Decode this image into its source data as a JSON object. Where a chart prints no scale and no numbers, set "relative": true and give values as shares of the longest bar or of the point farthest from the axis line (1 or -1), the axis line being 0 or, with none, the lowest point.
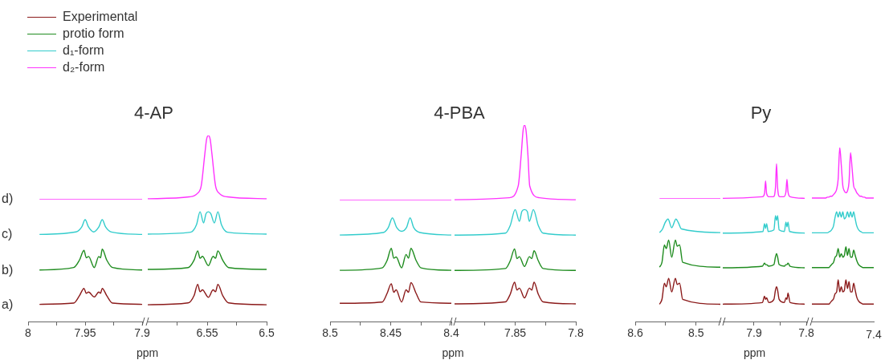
{
  "chart_data": [
    {
      "type": "line",
      "xlabel": "ppm",
      "relative": true,
      "marker": "none",
      "legend": "top left",
      "xlim": [
        8.0,
        7.9
      ],
      "xticks": [
        8.0,
        {
          "value": 7.975,
          "label": null
        },
        7.95,
        {
          "value": 7.925,
          "label": null
        },
        7.9
      ],
      "annotations": [
        "a)",
        "b)",
        "c)",
        "d)"
      ],
      "series": [
        {
          "name": "Experimental",
          "color": "#8b1a1a",
          "x": [
            7.99,
            7.96,
            7.955,
            7.951,
            7.949,
            7.947,
            7.942,
            7.938,
            7.9365,
            7.935,
            7.931,
            7.926,
            7.9
          ],
          "values": [
            0.14,
            0.15,
            0.21,
            0.27,
            0.23,
            0.24,
            0.2,
            0.24,
            0.23,
            0.27,
            0.21,
            0.15,
            0.14
          ]
        },
        {
          "name": "protio form",
          "color": "#1f8c1f",
          "x": [
            7.99,
            7.96,
            7.955,
            7.951,
            7.949,
            7.947,
            7.942,
            7.938,
            7.9365,
            7.935,
            7.931,
            7.926,
            7.9
          ],
          "values": [
            0.42,
            0.44,
            0.5,
            0.58,
            0.52,
            0.53,
            0.44,
            0.53,
            0.52,
            0.59,
            0.5,
            0.44,
            0.42
          ]
        },
        {
          "name": "d₁-form",
          "color": "#33cccc",
          "x": [
            7.99,
            7.958,
            7.953,
            7.95,
            7.947,
            7.9425,
            7.938,
            7.935,
            7.932,
            7.927,
            7.9
          ],
          "values": [
            0.71,
            0.73,
            0.77,
            0.83,
            0.77,
            0.73,
            0.77,
            0.83,
            0.77,
            0.73,
            0.71
          ]
        },
        {
          "name": "d₂-form",
          "color": "#ff33ff",
          "x": [
            7.99,
            7.9
          ],
          "values": [
            1.0,
            1.0
          ]
        }
      ]
    },
    {
      "type": "line",
      "title": "4-AP",
      "relative": true,
      "marker": "none",
      "xlim": [
        6.6,
        6.5
      ],
      "xticks": [
        {
          "value": 6.575,
          "label": null
        },
        6.55,
        {
          "value": 6.525,
          "label": null
        },
        6.5
      ],
      "series": [
        {
          "color": "#8b1a1a",
          "x": [
            6.6,
            6.566,
            6.561,
            6.558,
            6.556,
            6.554,
            6.549,
            6.545,
            6.543,
            6.541,
            6.537,
            6.532,
            6.5
          ],
          "values": [
            0.09,
            0.1,
            0.14,
            0.2,
            0.16,
            0.17,
            0.13,
            0.17,
            0.16,
            0.2,
            0.14,
            0.1,
            0.09
          ]
        },
        {
          "color": "#1f8c1f",
          "x": [
            6.6,
            6.566,
            6.561,
            6.558,
            6.556,
            6.554,
            6.549,
            6.545,
            6.543,
            6.541,
            6.537,
            6.532,
            6.5
          ],
          "values": [
            0.28,
            0.29,
            0.33,
            0.38,
            0.34,
            0.35,
            0.3,
            0.35,
            0.34,
            0.38,
            0.33,
            0.29,
            0.28
          ]
        },
        {
          "color": "#33cccc",
          "x": [
            6.6,
            6.564,
            6.559,
            6.556,
            6.553,
            6.551,
            6.549,
            6.547,
            6.544,
            6.541,
            6.538,
            6.533,
            6.5
          ],
          "values": [
            0.47,
            0.48,
            0.52,
            0.59,
            0.53,
            0.58,
            0.59,
            0.58,
            0.53,
            0.59,
            0.52,
            0.48,
            0.47
          ]
        },
        {
          "color": "#ff33ff",
          "x": [
            6.6,
            6.565,
            6.558,
            6.555,
            6.552,
            6.5505,
            6.549,
            6.5475,
            6.546,
            6.543,
            6.54,
            6.533,
            6.5
          ],
          "values": [
            0.66,
            0.67,
            0.69,
            0.73,
            0.9,
            0.98,
            1.0,
            0.98,
            0.9,
            0.73,
            0.69,
            0.67,
            0.66
          ]
        }
      ]
    },
    {
      "type": "line",
      "xlabel": "ppm",
      "relative": true,
      "marker": "none",
      "xlim": [
        8.5,
        8.4
      ],
      "xticks": [
        8.5,
        {
          "value": 8.475,
          "label": null
        },
        8.45,
        {
          "value": 8.425,
          "label": null
        },
        8.4
      ],
      "series": [
        {
          "color": "#8b1a1a",
          "x": [
            8.492,
            8.457,
            8.453,
            8.4495,
            8.4475,
            8.4455,
            8.441,
            8.4373,
            8.4353,
            8.4333,
            8.429,
            8.425,
            8.4
          ],
          "values": [
            0.15,
            0.16,
            0.23,
            0.31,
            0.24,
            0.26,
            0.16,
            0.26,
            0.24,
            0.32,
            0.23,
            0.16,
            0.15
          ]
        },
        {
          "color": "#1f8c1f",
          "x": [
            8.492,
            8.457,
            8.453,
            8.4495,
            8.4475,
            8.4455,
            8.441,
            8.4373,
            8.4353,
            8.4333,
            8.429,
            8.425,
            8.4
          ],
          "values": [
            0.42,
            0.44,
            0.5,
            0.6,
            0.52,
            0.53,
            0.44,
            0.55,
            0.52,
            0.6,
            0.5,
            0.44,
            0.42
          ]
        },
        {
          "color": "#33cccc",
          "x": [
            8.492,
            8.456,
            8.452,
            8.4486,
            8.445,
            8.441,
            8.437,
            8.434,
            8.431,
            8.426,
            8.4
          ],
          "values": [
            0.71,
            0.73,
            0.77,
            0.85,
            0.77,
            0.74,
            0.77,
            0.85,
            0.77,
            0.73,
            0.71
          ]
        },
        {
          "color": "#ff33ff",
          "x": [
            8.492,
            8.4
          ],
          "values": [
            1.0,
            1.0
          ]
        }
      ]
    },
    {
      "type": "line",
      "title": "4-PBA",
      "relative": true,
      "marker": "none",
      "xlim": [
        7.9,
        7.8
      ],
      "xticks": [
        {
          "value": 7.875,
          "label": null
        },
        7.85,
        {
          "value": 7.825,
          "label": null
        },
        7.8
      ],
      "series": [
        {
          "color": "#8b1a1a",
          "x": [
            7.9,
            7.858,
            7.854,
            7.8505,
            7.8485,
            7.8465,
            7.8423,
            7.8383,
            7.8363,
            7.8344,
            7.831,
            7.827,
            7.8
          ],
          "values": [
            0.09,
            0.1,
            0.14,
            0.2,
            0.16,
            0.17,
            0.12,
            0.17,
            0.16,
            0.2,
            0.14,
            0.1,
            0.09
          ]
        },
        {
          "color": "#1f8c1f",
          "x": [
            7.9,
            7.858,
            7.854,
            7.8505,
            7.8485,
            7.8465,
            7.8423,
            7.8383,
            7.8363,
            7.8344,
            7.831,
            7.827,
            7.8
          ],
          "values": [
            0.26,
            0.27,
            0.31,
            0.37,
            0.32,
            0.33,
            0.28,
            0.33,
            0.32,
            0.36,
            0.31,
            0.27,
            0.26
          ]
        },
        {
          "color": "#33cccc",
          "x": [
            7.9,
            7.858,
            7.854,
            7.85,
            7.8465,
            7.8445,
            7.8423,
            7.84,
            7.8383,
            7.835,
            7.831,
            7.827,
            7.8
          ],
          "values": [
            0.44,
            0.45,
            0.49,
            0.57,
            0.51,
            0.56,
            0.57,
            0.56,
            0.51,
            0.57,
            0.49,
            0.45,
            0.44
          ]
        },
        {
          "color": "#ff33ff",
          "x": [
            7.9,
            7.855,
            7.8475,
            7.845,
            7.8435,
            7.8423,
            7.841,
            7.8395,
            7.838,
            7.83,
            7.8
          ],
          "values": [
            0.62,
            0.63,
            0.69,
            0.85,
            0.97,
            1.0,
            0.97,
            0.85,
            0.69,
            0.63,
            0.62
          ]
        }
      ]
    },
    {
      "type": "line",
      "relative": true,
      "marker": "none",
      "xlim": [
        8.6,
        8.46
      ],
      "xticks": [
        8.6,
        {
          "value": 8.55,
          "label": null
        },
        8.5
      ],
      "series": [
        {
          "color": "#8b1a1a",
          "x": [
            8.56,
            8.556,
            8.552,
            8.549,
            8.545,
            8.54,
            8.534,
            8.531,
            8.527,
            8.522,
            8.46
          ],
          "values": [
            0.14,
            0.18,
            0.31,
            0.28,
            0.35,
            0.24,
            0.35,
            0.3,
            0.31,
            0.18,
            0.14
          ]
        },
        {
          "color": "#1f8c1f",
          "x": [
            8.56,
            8.556,
            8.552,
            8.549,
            8.545,
            8.54,
            8.534,
            8.531,
            8.527,
            8.522,
            8.46
          ],
          "values": [
            0.44,
            0.48,
            0.62,
            0.59,
            0.66,
            0.52,
            0.66,
            0.61,
            0.62,
            0.48,
            0.44
          ]
        },
        {
          "color": "#33cccc",
          "x": [
            8.56,
            8.555,
            8.551,
            8.546,
            8.54,
            8.533,
            8.529,
            8.524,
            8.46
          ],
          "values": [
            0.72,
            0.75,
            0.8,
            0.83,
            0.76,
            0.83,
            0.8,
            0.75,
            0.72
          ]
        },
        {
          "color": "#ff33ff",
          "x": [
            8.56,
            8.46
          ],
          "values": [
            1.0,
            1.0
          ]
        }
      ]
    },
    {
      "type": "line",
      "title": "Py",
      "xlabel": "ppm",
      "relative": true,
      "marker": "none",
      "xlim": [
        7.96,
        7.8
      ],
      "xticks": [
        7.9,
        {
          "value": 7.85,
          "label": null
        },
        7.8
      ],
      "series": [
        {
          "color": "#8b1a1a",
          "x": [
            7.96,
            7.884,
            7.88,
            7.878,
            7.876,
            7.872,
            7.862,
            7.859,
            7.857,
            7.855,
            7.852,
            7.842,
            7.839,
            7.837,
            7.835,
            7.831,
            7.803
          ],
          "values": [
            0.11,
            0.12,
            0.16,
            0.14,
            0.15,
            0.12,
            0.14,
            0.2,
            0.22,
            0.2,
            0.14,
            0.12,
            0.15,
            0.14,
            0.18,
            0.12,
            0.11
          ]
        },
        {
          "color": "#1f8c1f",
          "x": [
            7.96,
            7.884,
            7.88,
            7.878,
            7.876,
            7.872,
            7.862,
            7.859,
            7.857,
            7.855,
            7.852,
            7.842,
            7.839,
            7.837,
            7.835,
            7.831,
            7.803
          ],
          "values": [
            0.34,
            0.35,
            0.37,
            0.36,
            0.36,
            0.35,
            0.36,
            0.41,
            0.43,
            0.41,
            0.36,
            0.35,
            0.36,
            0.36,
            0.37,
            0.35,
            0.34
          ]
        },
        {
          "color": "#33cccc",
          "x": [
            7.96,
            7.883,
            7.88,
            7.878,
            7.876,
            7.873,
            7.862,
            7.859,
            7.857,
            7.855,
            7.852,
            7.842,
            7.839,
            7.837,
            7.835,
            7.832,
            7.803
          ],
          "values": [
            0.56,
            0.57,
            0.62,
            0.59,
            0.62,
            0.57,
            0.58,
            0.67,
            0.64,
            0.67,
            0.58,
            0.57,
            0.63,
            0.6,
            0.63,
            0.57,
            0.56
          ]
        },
        {
          "color": "#ff33ff",
          "x": [
            7.96,
            7.884,
            7.88,
            7.878,
            7.876,
            7.872,
            7.863,
            7.859,
            7.857,
            7.855,
            7.851,
            7.843,
            7.839,
            7.837,
            7.835,
            7.831,
            7.803
          ],
          "values": [
            0.78,
            0.79,
            0.81,
            0.89,
            0.81,
            0.79,
            0.79,
            0.85,
            1.0,
            0.85,
            0.79,
            0.79,
            0.82,
            0.9,
            0.82,
            0.79,
            0.78
          ]
        }
      ]
    },
    {
      "type": "line",
      "relative": true,
      "marker": "none",
      "annotations": [
        "7.4"
      ],
      "categories": [
        null,
        null,
        null,
        null,
        null,
        null,
        null,
        null,
        null,
        null,
        null,
        null,
        null,
        null,
        null,
        null,
        null,
        null,
        null,
        null,
        null,
        null,
        null,
        null,
        null,
        null,
        null,
        null,
        null,
        null,
        null,
        null,
        null,
        null,
        null,
        null,
        null,
        null,
        null,
        null,
        null
      ],
      "series": [
        {
          "color": "#8b1a1a",
          "values": [
            0.1,
            0.1,
            0.1,
            0.1,
            0.1,
            0.1,
            0.1,
            0.1,
            0.1,
            0.1,
            0.1,
            0.1,
            0.11,
            0.12,
            0.13,
            0.16,
            0.17,
            0.24,
            0.17,
            0.2,
            0.17,
            0.18,
            0.24,
            0.19,
            0.23,
            0.17,
            0.17,
            0.22,
            0.18,
            0.14,
            0.12,
            0.11,
            0.105,
            0.1,
            0.1,
            0.1,
            0.1,
            0.1,
            0.1,
            0.1,
            0.1
          ]
        },
        {
          "color": "#1f8c1f",
          "values": [
            0.31,
            0.31,
            0.31,
            0.31,
            0.31,
            0.31,
            0.31,
            0.31,
            0.31,
            0.31,
            0.31,
            0.31,
            0.32,
            0.33,
            0.34,
            0.37,
            0.38,
            0.42,
            0.37,
            0.39,
            0.37,
            0.38,
            0.43,
            0.38,
            0.42,
            0.37,
            0.37,
            0.41,
            0.38,
            0.35,
            0.33,
            0.32,
            0.315,
            0.31,
            0.31,
            0.31,
            0.31,
            0.31,
            0.31,
            0.31,
            0.31
          ]
        },
        {
          "color": "#33cccc",
          "values": [
            0.51,
            0.51,
            0.51,
            0.51,
            0.51,
            0.51,
            0.51,
            0.51,
            0.51,
            0.51,
            0.51,
            0.515,
            0.52,
            0.53,
            0.55,
            0.6,
            0.63,
            0.6,
            0.63,
            0.6,
            0.63,
            0.59,
            0.6,
            0.63,
            0.6,
            0.63,
            0.6,
            0.63,
            0.59,
            0.55,
            0.53,
            0.52,
            0.515,
            0.51,
            0.51,
            0.51,
            0.51,
            0.51,
            0.51,
            0.51,
            0.51
          ]
        },
        {
          "color": "#ff33ff",
          "values": [
            0.71,
            0.71,
            0.71,
            0.71,
            0.71,
            0.71,
            0.71,
            0.71,
            0.71,
            0.71,
            0.715,
            0.715,
            0.72,
            0.72,
            0.73,
            0.74,
            0.76,
            0.82,
            1.0,
            0.9,
            0.78,
            0.75,
            0.74,
            0.75,
            0.8,
            0.97,
            0.88,
            0.78,
            0.76,
            0.74,
            0.73,
            0.72,
            0.72,
            0.715,
            0.715,
            0.71,
            0.71,
            0.71,
            0.71,
            0.71,
            0.71
          ]
        }
      ]
    }
  ]
}
